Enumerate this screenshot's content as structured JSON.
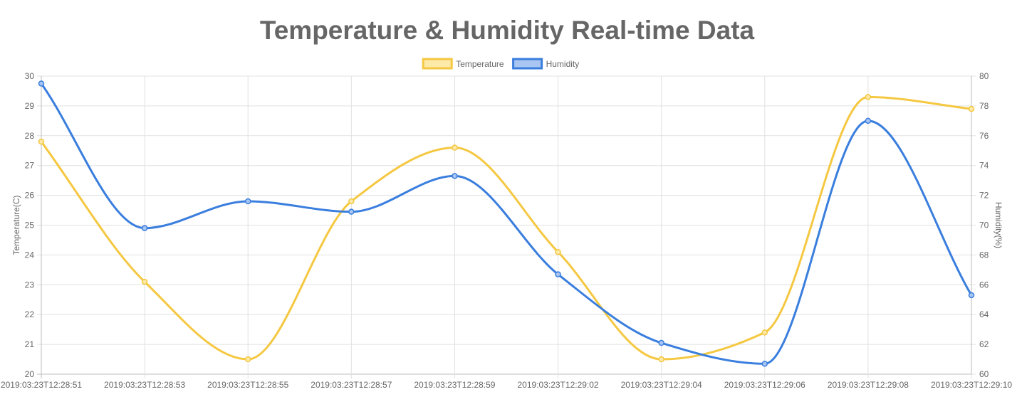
{
  "chart_data": {
    "type": "line",
    "title": "Temperature & Humidity Real-time Data",
    "categories": [
      "2019:03:23T12:28:51",
      "2019:03:23T12:28:53",
      "2019:03:23T12:28:55",
      "2019:03:23T12:28:57",
      "2019:03:23T12:28:59",
      "2019:03:23T12:29:02",
      "2019:03:23T12:29:04",
      "2019:03:23T12:29:06",
      "2019:03:23T12:29:08",
      "2019:03:23T12:29:10"
    ],
    "series": [
      {
        "name": "Temperature",
        "axis": "left",
        "color": "#f5c842",
        "fill": "#fde9a8",
        "values": [
          27.8,
          23.1,
          20.5,
          25.8,
          27.6,
          24.1,
          20.5,
          21.4,
          29.3,
          28.9
        ]
      },
      {
        "name": "Humidity",
        "axis": "right",
        "color": "#3a7ede",
        "fill": "#a9c6f2",
        "values": [
          79.5,
          69.8,
          71.6,
          70.9,
          73.3,
          66.7,
          62.1,
          60.7,
          77.0,
          65.3
        ]
      }
    ],
    "y_left": {
      "label": "Temperature(C)",
      "min": 20,
      "max": 30,
      "step": 1
    },
    "y_right": {
      "label": "Humidity(%)",
      "min": 60,
      "max": 80,
      "step": 2
    },
    "grid": true,
    "legend": "top-center"
  }
}
